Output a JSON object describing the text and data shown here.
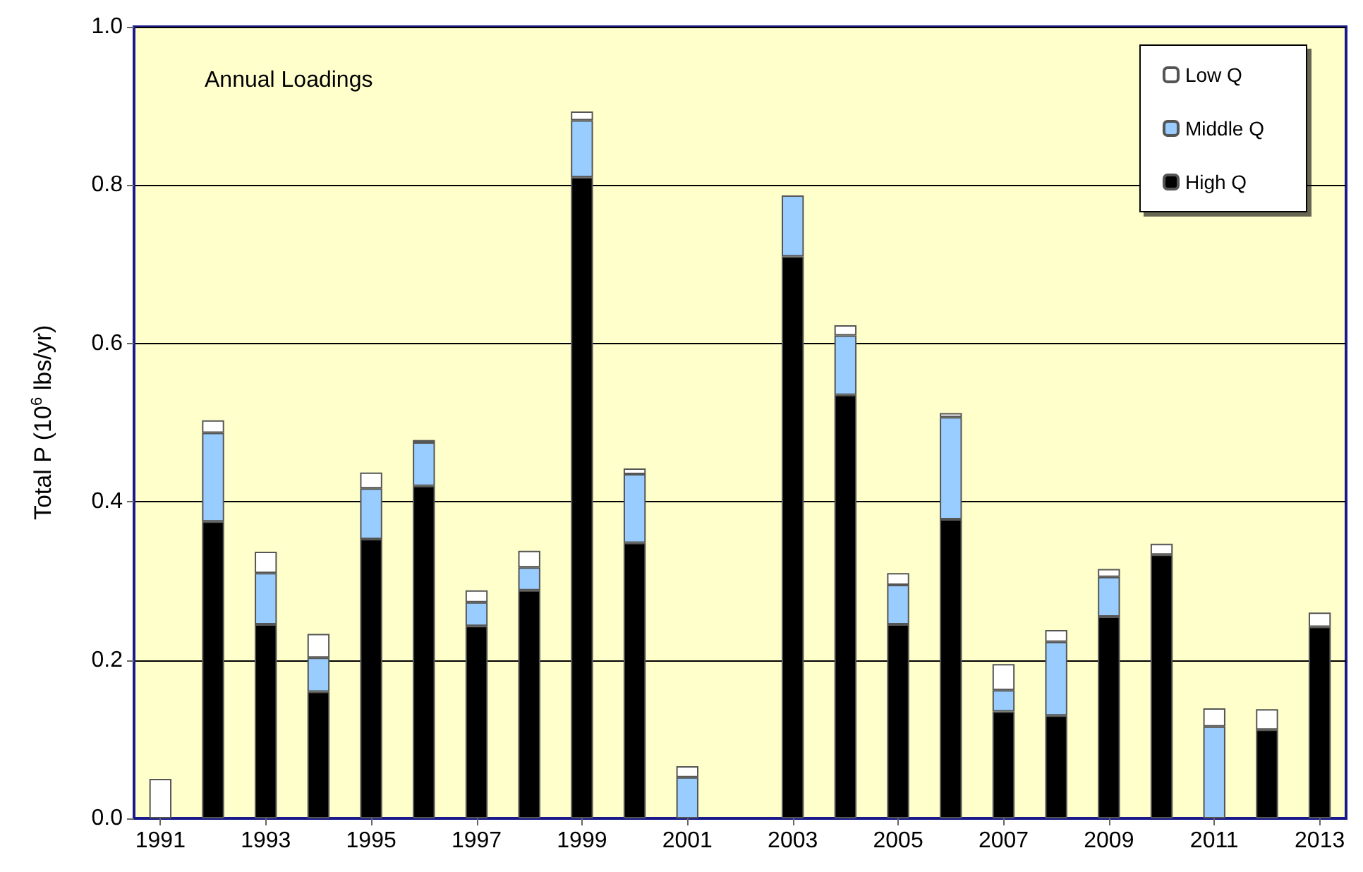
{
  "chart_data": {
    "type": "bar",
    "title": "Annual Loadings",
    "ylabel": "Total P (10$^{6}$ lbs/yr)",
    "categories": [
      "1991",
      null,
      "1993",
      null,
      "1995",
      null,
      "1997",
      null,
      "1999",
      null,
      "2001",
      null,
      "2003",
      null,
      "2005",
      null,
      "2007",
      null,
      "2009",
      null,
      "2011",
      null,
      "2013"
    ],
    "stacked": true,
    "series": [
      {
        "name": "High Q",
        "color": "#000000",
        "values": [
          0,
          0.375,
          0.245,
          0.16,
          0.353,
          0.42,
          0.243,
          0.288,
          0.81,
          0.348,
          0,
          0,
          0.71,
          0.535,
          0.245,
          0.378,
          0.135,
          0.13,
          0.255,
          0.333,
          0,
          0.112,
          0.242
        ]
      },
      {
        "name": "Middle Q",
        "color": "#99ccff",
        "values": [
          0,
          0.112,
          0.065,
          0.043,
          0.064,
          0.055,
          0.03,
          0.029,
          0.072,
          0.087,
          0.052,
          0,
          0.077,
          0.075,
          0.05,
          0.129,
          0.027,
          0.093,
          0.05,
          0,
          0.116,
          0,
          0
        ]
      },
      {
        "name": "Low Q",
        "color": "#ffffff",
        "values": [
          0.05,
          0.016,
          0.027,
          0.03,
          0.02,
          0.003,
          0.015,
          0.021,
          0.011,
          0.007,
          0.014,
          0,
          0,
          0.013,
          0.015,
          0.005,
          0.033,
          0.015,
          0.01,
          0.014,
          0.023,
          0.026,
          0.018
        ]
      }
    ],
    "ylim": [
      0,
      1
    ],
    "yticks": [
      {
        "value": 0,
        "label": "0.0"
      },
      {
        "value": 0.2,
        "label": "0.2"
      },
      {
        "value": 0.4,
        "label": "0.4"
      },
      {
        "value": 0.6,
        "label": "0.6"
      },
      {
        "value": 0.8,
        "label": "0.8"
      },
      {
        "value": 1,
        "label": "1.0"
      }
    ],
    "grid": "y",
    "legend": "top right"
  }
}
